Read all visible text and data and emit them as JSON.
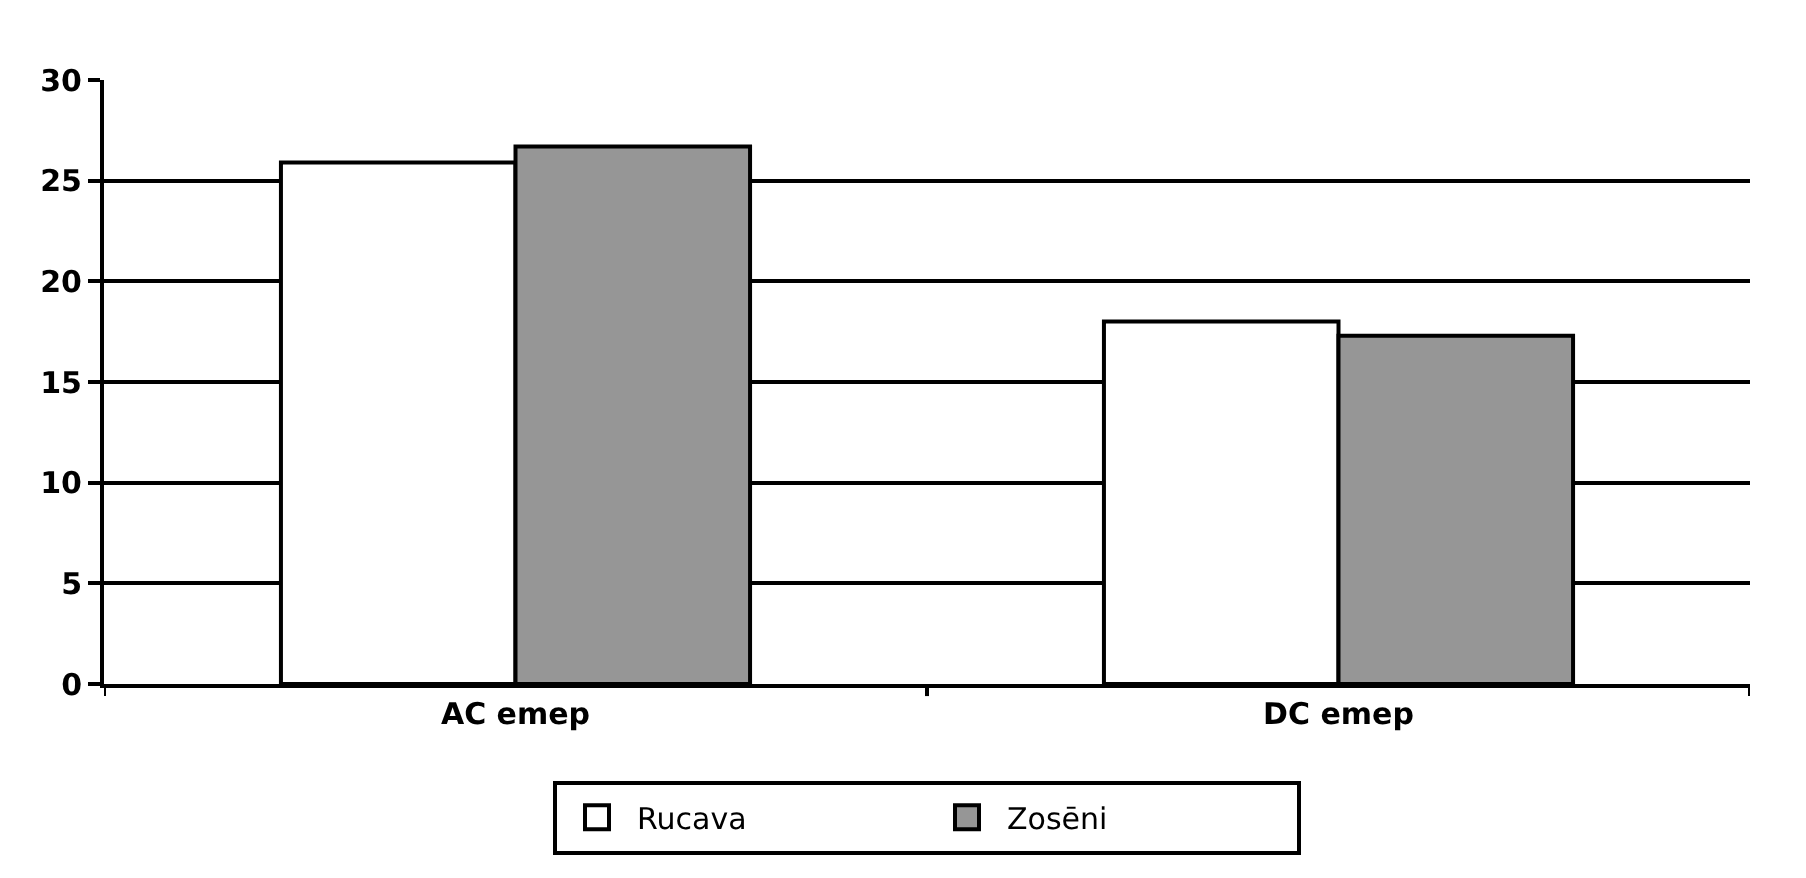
{
  "chart_data": {
    "type": "bar",
    "categories": [
      "AC emep",
      "DC emep"
    ],
    "series": [
      {
        "name": "Rucava",
        "color": "#ffffff",
        "values": [
          25.9,
          18.0
        ]
      },
      {
        "name": "Zosēni",
        "color": "#969696",
        "values": [
          26.7,
          17.3
        ]
      }
    ],
    "ylim": [
      0,
      30
    ],
    "yticks": [
      0,
      5,
      10,
      15,
      20,
      25,
      30
    ],
    "grid": "y",
    "legend": "bottom"
  }
}
